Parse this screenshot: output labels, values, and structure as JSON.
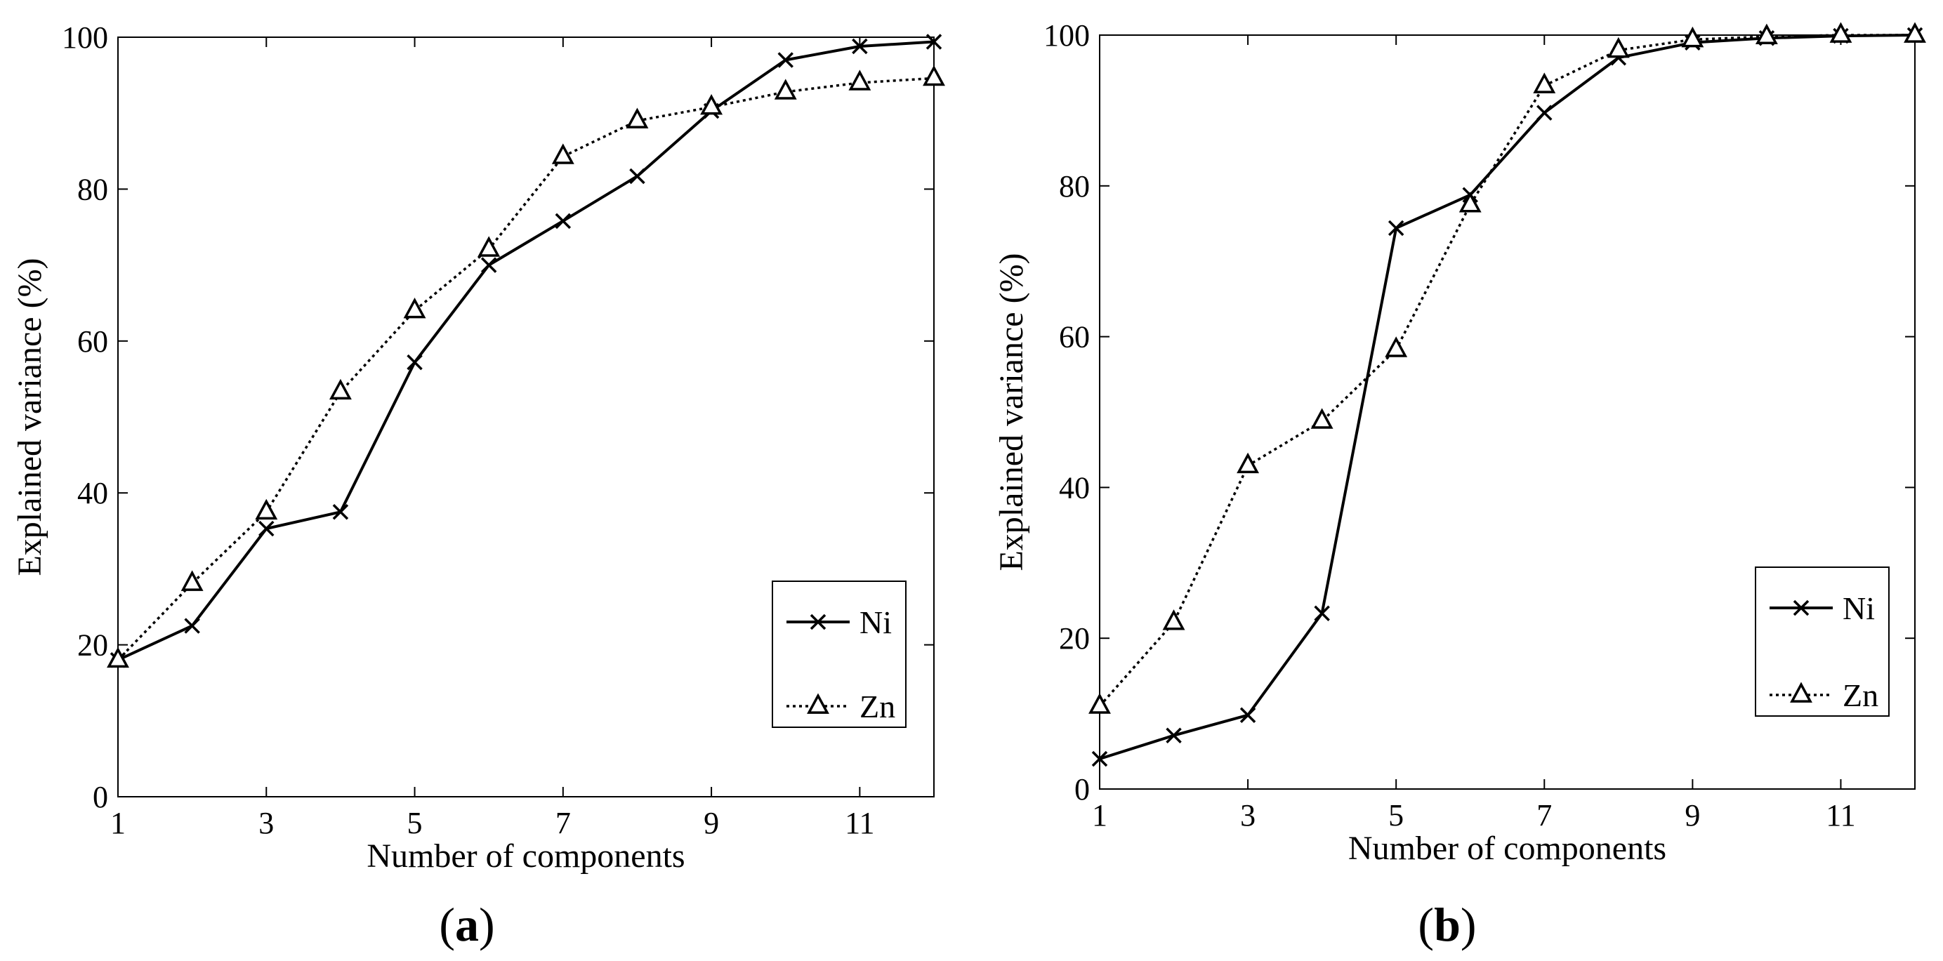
{
  "colors": {
    "axis": "#000000",
    "line": "#000000",
    "background": "#ffffff"
  },
  "chart_data": [
    {
      "type": "line",
      "panel_label": "a",
      "title": "",
      "xlabel": "Number of components",
      "ylabel": "Explained variance (%)",
      "xlim": [
        1,
        12
      ],
      "ylim": [
        0,
        100
      ],
      "x_ticks": [
        1,
        3,
        5,
        7,
        9,
        11
      ],
      "y_ticks": [
        0,
        20,
        40,
        60,
        80,
        100
      ],
      "grid": false,
      "legend_position": "bottom-right",
      "x": [
        1,
        2,
        3,
        4,
        5,
        6,
        7,
        8,
        9,
        10,
        11,
        12
      ],
      "series": [
        {
          "name": "Ni",
          "marker": "x",
          "line_style": "solid",
          "values": [
            18,
            22.5,
            35.3,
            37.5,
            57.2,
            70,
            75.8,
            81.7,
            90.3,
            97,
            98.8,
            99.4
          ]
        },
        {
          "name": "Zn",
          "marker": "triangle",
          "line_style": "dotted",
          "values": [
            18,
            28.1,
            37.5,
            53.3,
            64,
            72.1,
            84.3,
            89,
            90.8,
            92.8,
            94,
            94.6
          ]
        }
      ]
    },
    {
      "type": "line",
      "panel_label": "b",
      "title": "",
      "xlabel": "Number of components",
      "ylabel": "Explained variance (%)",
      "xlim": [
        1,
        12
      ],
      "ylim": [
        0,
        100
      ],
      "x_ticks": [
        1,
        3,
        5,
        7,
        9,
        11
      ],
      "y_ticks": [
        0,
        20,
        40,
        60,
        80,
        100
      ],
      "grid": false,
      "legend_position": "bottom-right",
      "x": [
        1,
        2,
        3,
        4,
        5,
        6,
        7,
        8,
        9,
        10,
        11,
        12
      ],
      "series": [
        {
          "name": "Ni",
          "marker": "x",
          "line_style": "solid",
          "values": [
            4,
            7.1,
            9.8,
            23.3,
            74.4,
            78.8,
            89.7,
            97,
            99,
            99.6,
            99.9,
            100
          ]
        },
        {
          "name": "Zn",
          "marker": "triangle",
          "line_style": "dotted",
          "values": [
            11,
            22.1,
            42.9,
            48.8,
            58.3,
            77.5,
            93.3,
            98,
            99.4,
            99.8,
            100,
            100
          ]
        }
      ]
    }
  ]
}
